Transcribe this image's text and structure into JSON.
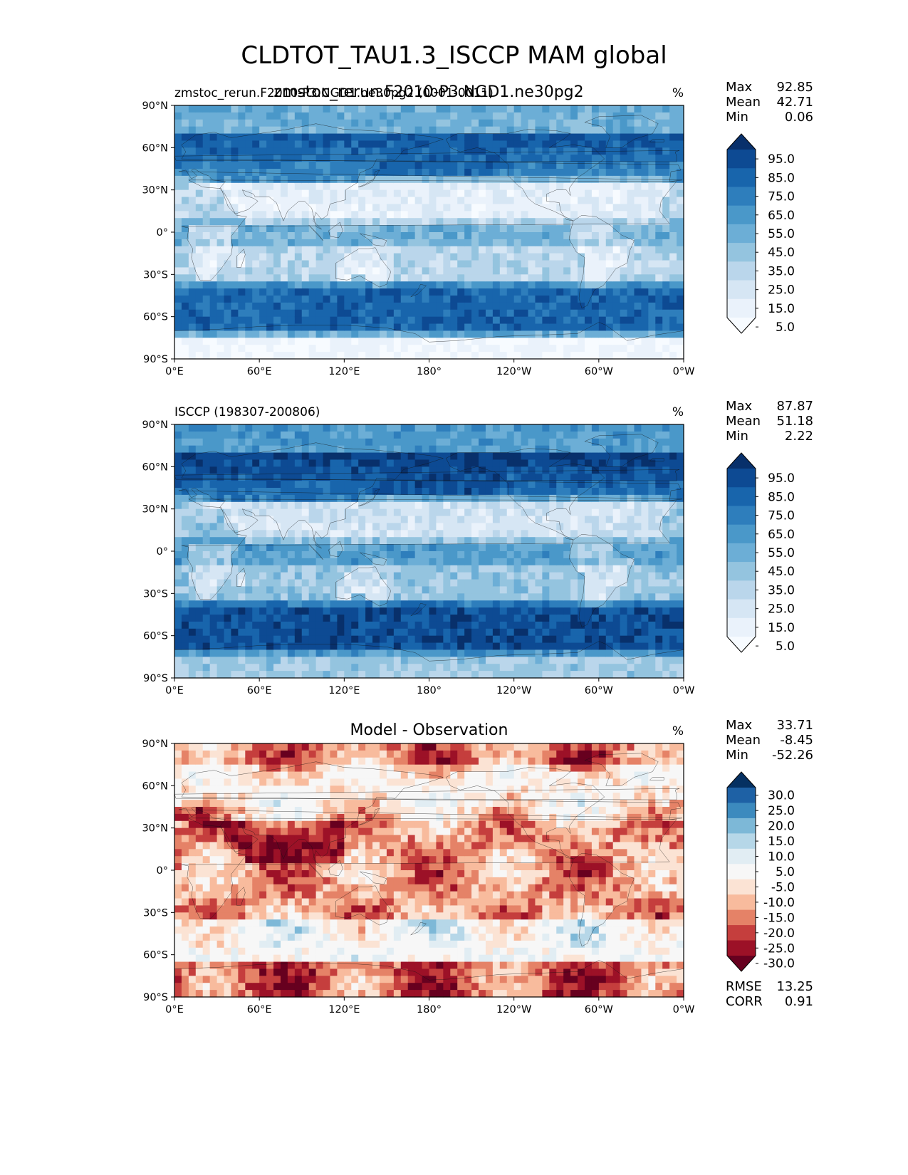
{
  "figure": {
    "title": "CLDTOT_TAU1.3_ISCCP MAM global",
    "overlay_title": "zmstoc_rerun.F2010-P3.NGD1.ne30pg2"
  },
  "chart_data": [
    {
      "type": "heatmap",
      "id": "test",
      "left_title": "zmstoc_rerun.F2010-P3.NGD1.ne30pg2 (0001-0011)",
      "center_title": "",
      "units": "%",
      "stats": {
        "max_label": "Max",
        "mean_label": "Mean",
        "min_label": "Min",
        "max": "92.85",
        "mean": "42.71",
        "min": "0.06"
      },
      "xlabel": "",
      "ylabel": "",
      "x_ticks": [
        "0°E",
        "60°E",
        "120°E",
        "180°",
        "120°W",
        "60°W",
        "0°W"
      ],
      "y_ticks": [
        "90°N",
        "60°N",
        "30°N",
        "0°",
        "30°S",
        "60°S",
        "90°S"
      ],
      "colorbar": {
        "levels": [
          "95.0",
          "85.0",
          "75.0",
          "65.0",
          "55.0",
          "45.0",
          "35.0",
          "25.0",
          "15.0",
          "5.0"
        ],
        "colors": [
          "#08306b",
          "#0d4a93",
          "#1865ac",
          "#2e7ebc",
          "#4a98c9",
          "#6caed6",
          "#94c4df",
          "#bad6eb",
          "#d6e6f4",
          "#eaf2fb",
          "#f7fbff"
        ]
      },
      "pattern": "test"
    },
    {
      "type": "heatmap",
      "id": "ref",
      "left_title": "ISCCP (198307-200806)",
      "center_title": "",
      "units": "%",
      "stats": {
        "max_label": "Max",
        "mean_label": "Mean",
        "min_label": "Min",
        "max": "87.87",
        "mean": "51.18",
        "min": "2.22"
      },
      "xlabel": "",
      "ylabel": "",
      "x_ticks": [
        "0°E",
        "60°E",
        "120°E",
        "180°",
        "120°W",
        "60°W",
        "0°W"
      ],
      "y_ticks": [
        "90°N",
        "60°N",
        "30°N",
        "0°",
        "30°S",
        "60°S",
        "90°S"
      ],
      "colorbar": {
        "levels": [
          "95.0",
          "85.0",
          "75.0",
          "65.0",
          "55.0",
          "45.0",
          "35.0",
          "25.0",
          "15.0",
          "5.0"
        ],
        "colors": [
          "#08306b",
          "#0d4a93",
          "#1865ac",
          "#2e7ebc",
          "#4a98c9",
          "#6caed6",
          "#94c4df",
          "#bad6eb",
          "#d6e6f4",
          "#eaf2fb",
          "#f7fbff"
        ]
      },
      "pattern": "ref"
    },
    {
      "type": "heatmap",
      "id": "diff",
      "left_title": "",
      "center_title": "Model - Observation",
      "units": "%",
      "stats": {
        "max_label": "Max",
        "mean_label": "Mean",
        "min_label": "Min",
        "max": "33.71",
        "mean": "-8.45",
        "min": "-52.26"
      },
      "extra_stats": {
        "rmse_label": "RMSE",
        "rmse": "13.25",
        "corr_label": "CORR",
        "corr": "0.91"
      },
      "xlabel": "",
      "ylabel": "",
      "x_ticks": [
        "0°E",
        "60°E",
        "120°E",
        "180°",
        "120°W",
        "60°W",
        "0°W"
      ],
      "y_ticks": [
        "90°N",
        "60°N",
        "30°N",
        "0°",
        "30°S",
        "60°S",
        "90°S"
      ],
      "colorbar": {
        "levels": [
          "30.0",
          "25.0",
          "20.0",
          "15.0",
          "10.0",
          "5.0",
          "-5.0",
          "-10.0",
          "-15.0",
          "-20.0",
          "-25.0",
          "-30.0"
        ],
        "colors": [
          "#053061",
          "#1e61a5",
          "#3c8abe",
          "#7db8d7",
          "#b6d7e8",
          "#e1edf3",
          "#f7f7f7",
          "#fbe3d4",
          "#f8bb9d",
          "#e58267",
          "#c53e3d",
          "#9c1127",
          "#67001f"
        ]
      },
      "pattern": "diff"
    }
  ]
}
